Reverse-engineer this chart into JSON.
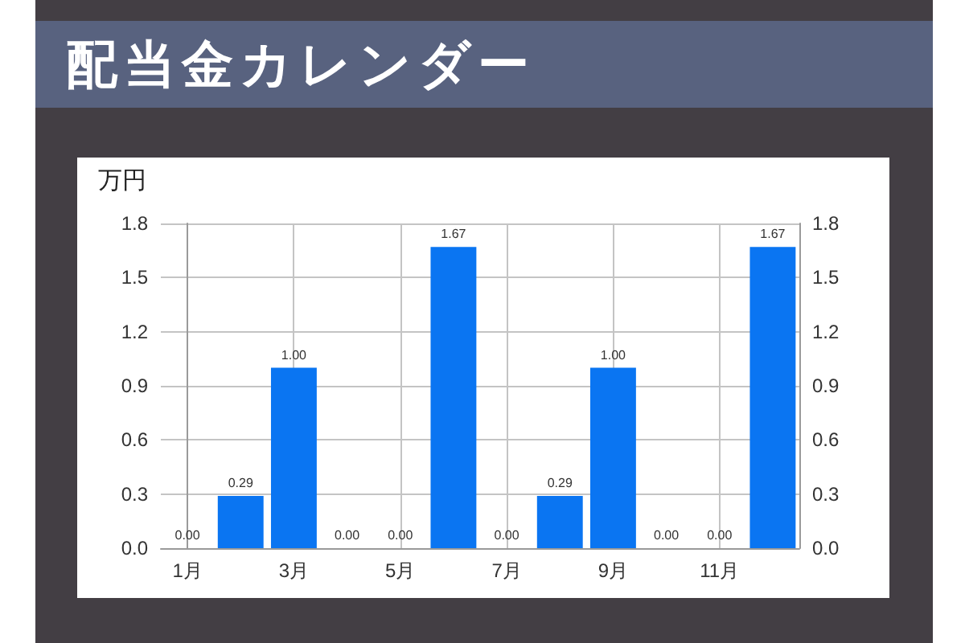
{
  "chart_data": {
    "type": "bar",
    "title": "配当金カレンダー",
    "ylabel": "万円",
    "categories": [
      "1月",
      null,
      "3月",
      null,
      "5月",
      null,
      "7月",
      null,
      "9月",
      null,
      "11月",
      null
    ],
    "values": [
      0,
      0.29,
      1.0,
      0,
      0,
      1.67,
      0,
      0.29,
      1.0,
      0,
      0,
      1.67
    ],
    "value_labels": [
      "0.00",
      "0.29",
      "1.00",
      "0.00",
      "0.00",
      "1.67",
      "0.00",
      "0.29",
      "1.00",
      "0.00",
      "0.00",
      "1.67"
    ],
    "color": "#0a75f2",
    "ylim": [
      0,
      1.8
    ],
    "yticks": [
      {
        "value": 0,
        "label": "0.0"
      },
      0.3,
      0.6,
      0.9,
      1.2,
      1.5,
      1.8
    ],
    "y2lim": [
      0,
      1.8
    ],
    "y2ticks": [
      {
        "value": 0,
        "label": "0.0"
      },
      0.3,
      0.6,
      0.9,
      1.2,
      1.5,
      1.8
    ],
    "grid": true
  }
}
